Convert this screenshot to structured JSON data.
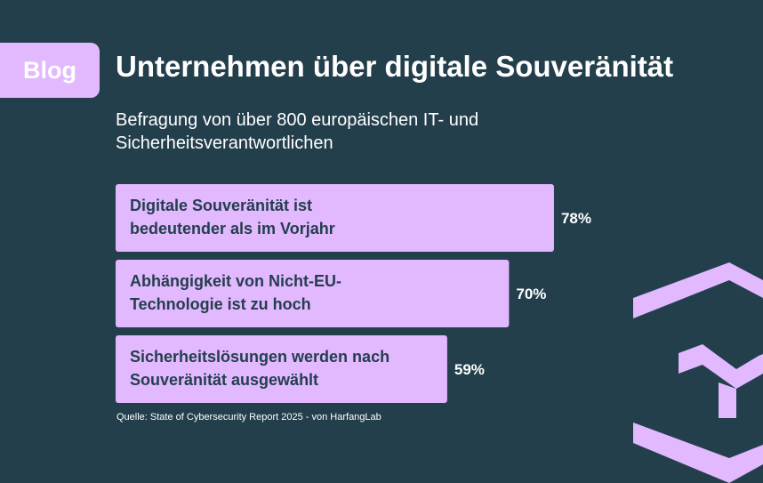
{
  "badge": "Blog",
  "title": "Unternehmen über digitale Souveränität",
  "subtitle": "Befragung von über 800 europäischen IT- und Sicherheitsverantwortlichen",
  "source": "Quelle: State of Cybersecurity Report 2025 - von HarfangLab",
  "colors": {
    "background": "#233f4c",
    "bar": "#e2b8ff",
    "bar_text": "#233f4c",
    "text": "#ffffff"
  },
  "chart_data": {
    "type": "bar",
    "orientation": "horizontal",
    "categories": [
      "Digitale Souveränität ist bedeutender als im Vorjahr",
      "Abhängigkeit von Nicht-EU-Technologie ist zu hoch",
      "Sicherheitslösungen werden nach Souveränität ausgewählt"
    ],
    "category_lines": [
      [
        "Digitale Souveränität ist",
        "bedeutender als im Vorjahr"
      ],
      [
        "Abhängigkeit von Nicht-EU-",
        "Technologie ist zu hoch"
      ],
      [
        "Sicherheitslösungen werden nach",
        "Souveränität ausgewählt"
      ]
    ],
    "values": [
      78,
      70,
      59
    ],
    "value_labels": [
      "78%",
      "70%",
      "59%"
    ],
    "unit": "%",
    "xlim": [
      0,
      100
    ],
    "grid": false,
    "legend": "none"
  }
}
